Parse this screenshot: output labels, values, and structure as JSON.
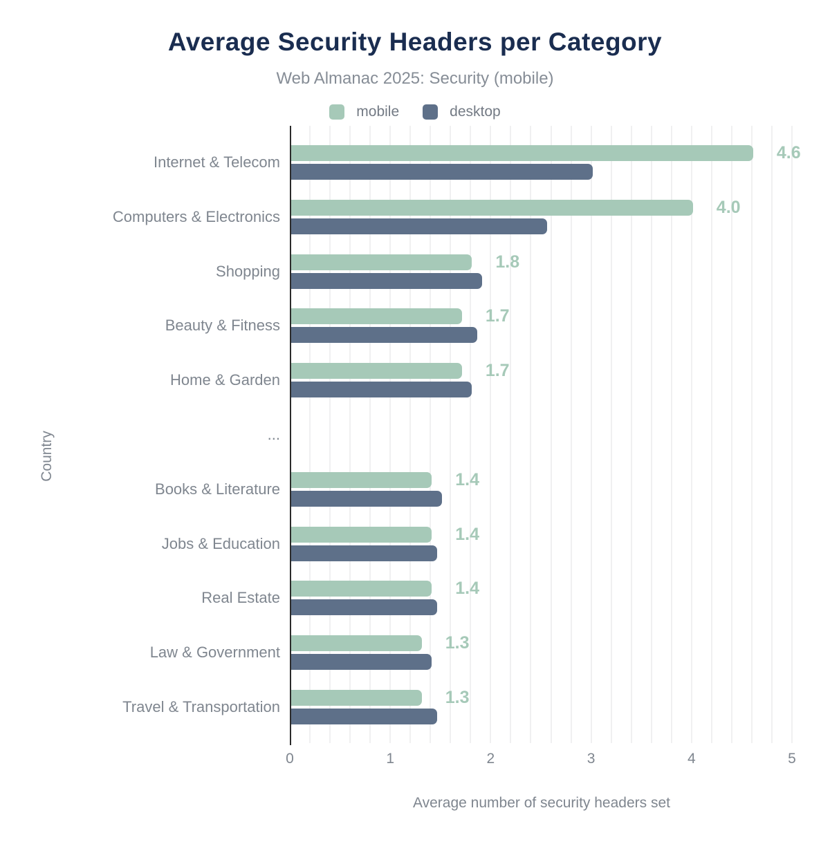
{
  "header": {
    "title": "Average Security Headers per Category",
    "subtitle": "Web Almanac 2025: Security (mobile)"
  },
  "colors": {
    "title": "#1a2d50",
    "subtitle_gray": "#868d96",
    "label_gray": "#7f868f",
    "legend_text_gray": "#737a84",
    "mobile_green": "#a6c9b8",
    "desktop_blue": "#5e7089",
    "axis_line": "#2b2b2b",
    "gridline": "#f0f0f1"
  },
  "chart_data": {
    "type": "bar",
    "orientation": "horizontal",
    "title": "Average Security Headers per Category",
    "subtitle": "Web Almanac 2025: Security (mobile)",
    "xlabel": "Average number of security headers set",
    "ylabel": "Country",
    "xlim": [
      0,
      5
    ],
    "xticks": [
      0,
      1,
      2,
      3,
      4,
      5
    ],
    "grid": "vertical minor gridlines every 0.2 units",
    "legend_position": "top center",
    "categories": [
      "Internet & Telecom",
      "Computers & Electronics",
      "Shopping",
      "Beauty & Fitness",
      "Home & Garden",
      "...",
      "Books & Literature",
      "Jobs & Education",
      "Real Estate",
      "Law & Government",
      "Travel & Transportation"
    ],
    "series": [
      {
        "name": "mobile",
        "color": "#a6c9b8",
        "values": [
          4.6,
          4.0,
          1.8,
          1.7,
          1.7,
          null,
          1.4,
          1.4,
          1.4,
          1.3,
          1.3
        ],
        "data_labels": [
          "4.6",
          "4.0",
          "1.8",
          "1.7",
          "1.7",
          "",
          "1.4",
          "1.4",
          "1.4",
          "1.3",
          "1.3"
        ]
      },
      {
        "name": "desktop",
        "color": "#5e7089",
        "values": [
          3.0,
          2.55,
          1.9,
          1.85,
          1.8,
          null,
          1.5,
          1.45,
          1.45,
          1.4,
          1.45
        ],
        "data_labels": [
          "",
          "",
          "",
          "",
          "",
          "",
          "",
          "",
          "",
          "",
          ""
        ]
      }
    ]
  }
}
